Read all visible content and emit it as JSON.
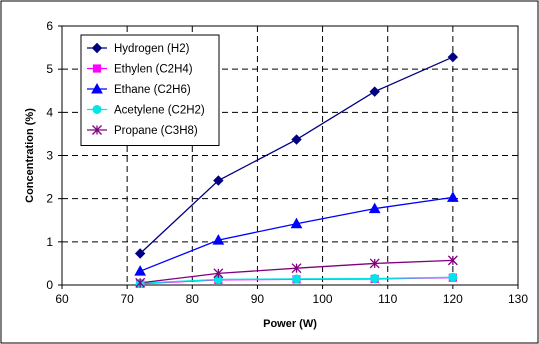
{
  "chart_data": {
    "type": "line",
    "xlabel": "Power (W)",
    "ylabel": "Concentration (%)",
    "xlim": [
      60,
      130
    ],
    "ylim": [
      0,
      6
    ],
    "xticks": [
      60,
      70,
      80,
      90,
      100,
      110,
      120,
      130
    ],
    "yticks": [
      0,
      1,
      2,
      3,
      4,
      5,
      6
    ],
    "grid": true,
    "legend_position": "top-left",
    "series": [
      {
        "name": "Hydrogen (H2)",
        "color": "#000080",
        "marker": "diamond",
        "x": [
          72,
          84,
          96,
          108,
          120
        ],
        "y": [
          0.73,
          2.42,
          3.37,
          4.48,
          5.28
        ]
      },
      {
        "name": "Ethylen (C2H4)",
        "color": "#FF00FF",
        "marker": "square",
        "x": [
          72,
          84,
          96,
          108,
          120
        ],
        "y": [
          0.03,
          0.12,
          0.13,
          0.14,
          0.17
        ]
      },
      {
        "name": "Ethane (C2H6)",
        "color": "#0000FF",
        "marker": "triangle",
        "x": [
          72,
          84,
          96,
          108,
          120
        ],
        "y": [
          0.32,
          1.04,
          1.42,
          1.77,
          2.03
        ]
      },
      {
        "name": "Acetylene (C2H2)",
        "color": "#00E5E5",
        "marker": "circle",
        "x": [
          72,
          84,
          96,
          108,
          120
        ],
        "y": [
          0.04,
          0.13,
          0.14,
          0.15,
          0.18
        ]
      },
      {
        "name": "Propane (C3H8)",
        "color": "#800080",
        "marker": "star",
        "x": [
          72,
          84,
          96,
          108,
          120
        ],
        "y": [
          0.05,
          0.27,
          0.39,
          0.5,
          0.57
        ]
      }
    ]
  }
}
